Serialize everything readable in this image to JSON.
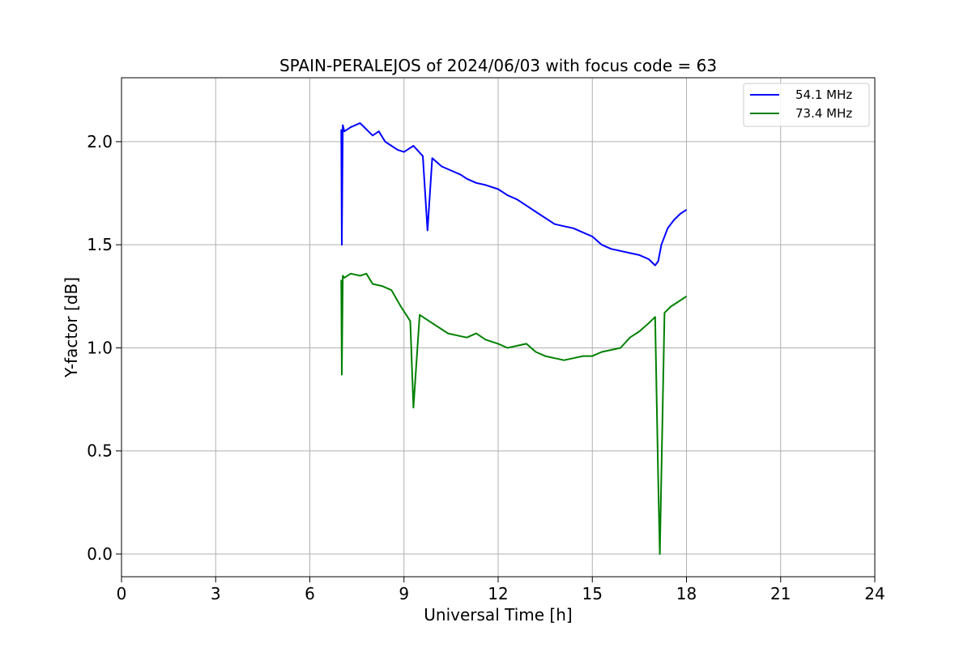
{
  "chart_data": {
    "type": "line",
    "title": "SPAIN-PERALEJOS of 2024/06/03 with focus code = 63",
    "xlabel": "Universal Time [h]",
    "ylabel": "Y-factor [dB]",
    "xlim": [
      0,
      24
    ],
    "ylim": [
      -0.11,
      2.31
    ],
    "x_ticks": [
      "0",
      "3",
      "6",
      "9",
      "12",
      "15",
      "18",
      "21",
      "24"
    ],
    "x_tick_values": [
      0,
      3,
      6,
      9,
      12,
      15,
      18,
      21,
      24
    ],
    "y_ticks": [
      "0.0",
      "0.5",
      "1.0",
      "1.5",
      "2.0"
    ],
    "y_tick_values": [
      0.0,
      0.5,
      1.0,
      1.5,
      2.0
    ],
    "grid": true,
    "legend_position": "top-right",
    "series": [
      {
        "name": "54.1 MHz",
        "color": "#0000ff",
        "x": [
          7.0,
          7.02,
          7.05,
          7.1,
          7.3,
          7.6,
          7.8,
          8.0,
          8.2,
          8.4,
          8.6,
          8.8,
          9.0,
          9.3,
          9.6,
          9.75,
          9.9,
          10.2,
          10.5,
          10.8,
          11.0,
          11.3,
          11.6,
          12.0,
          12.3,
          12.6,
          12.9,
          13.2,
          13.5,
          13.8,
          14.1,
          14.4,
          14.7,
          15.0,
          15.3,
          15.6,
          15.9,
          16.2,
          16.5,
          16.8,
          17.0,
          17.1,
          17.2,
          17.4,
          17.6,
          17.8,
          18.0
        ],
        "y": [
          2.06,
          1.5,
          2.08,
          2.05,
          2.07,
          2.09,
          2.06,
          2.03,
          2.05,
          2.0,
          1.98,
          1.96,
          1.95,
          1.98,
          1.93,
          1.57,
          1.92,
          1.88,
          1.86,
          1.84,
          1.82,
          1.8,
          1.79,
          1.77,
          1.74,
          1.72,
          1.69,
          1.66,
          1.63,
          1.6,
          1.59,
          1.58,
          1.56,
          1.54,
          1.5,
          1.48,
          1.47,
          1.46,
          1.45,
          1.43,
          1.4,
          1.42,
          1.5,
          1.58,
          1.62,
          1.65,
          1.67
        ]
      },
      {
        "name": "73.4 MHz",
        "color": "#008000",
        "x": [
          7.0,
          7.02,
          7.05,
          7.1,
          7.3,
          7.6,
          7.8,
          8.0,
          8.3,
          8.6,
          8.9,
          9.2,
          9.3,
          9.5,
          9.8,
          10.1,
          10.4,
          10.7,
          11.0,
          11.3,
          11.6,
          12.0,
          12.3,
          12.6,
          12.9,
          13.2,
          13.5,
          13.8,
          14.1,
          14.4,
          14.7,
          15.0,
          15.3,
          15.6,
          15.9,
          16.2,
          16.5,
          16.8,
          17.0,
          17.1,
          17.15,
          17.3,
          17.5,
          17.7,
          18.0
        ],
        "y": [
          1.33,
          0.87,
          1.35,
          1.34,
          1.36,
          1.35,
          1.36,
          1.31,
          1.3,
          1.28,
          1.2,
          1.13,
          0.71,
          1.16,
          1.13,
          1.1,
          1.07,
          1.06,
          1.05,
          1.07,
          1.04,
          1.02,
          1.0,
          1.01,
          1.02,
          0.98,
          0.96,
          0.95,
          0.94,
          0.95,
          0.96,
          0.96,
          0.98,
          0.99,
          1.0,
          1.05,
          1.08,
          1.12,
          1.15,
          0.36,
          0.0,
          1.17,
          1.2,
          1.22,
          1.25
        ]
      }
    ]
  }
}
